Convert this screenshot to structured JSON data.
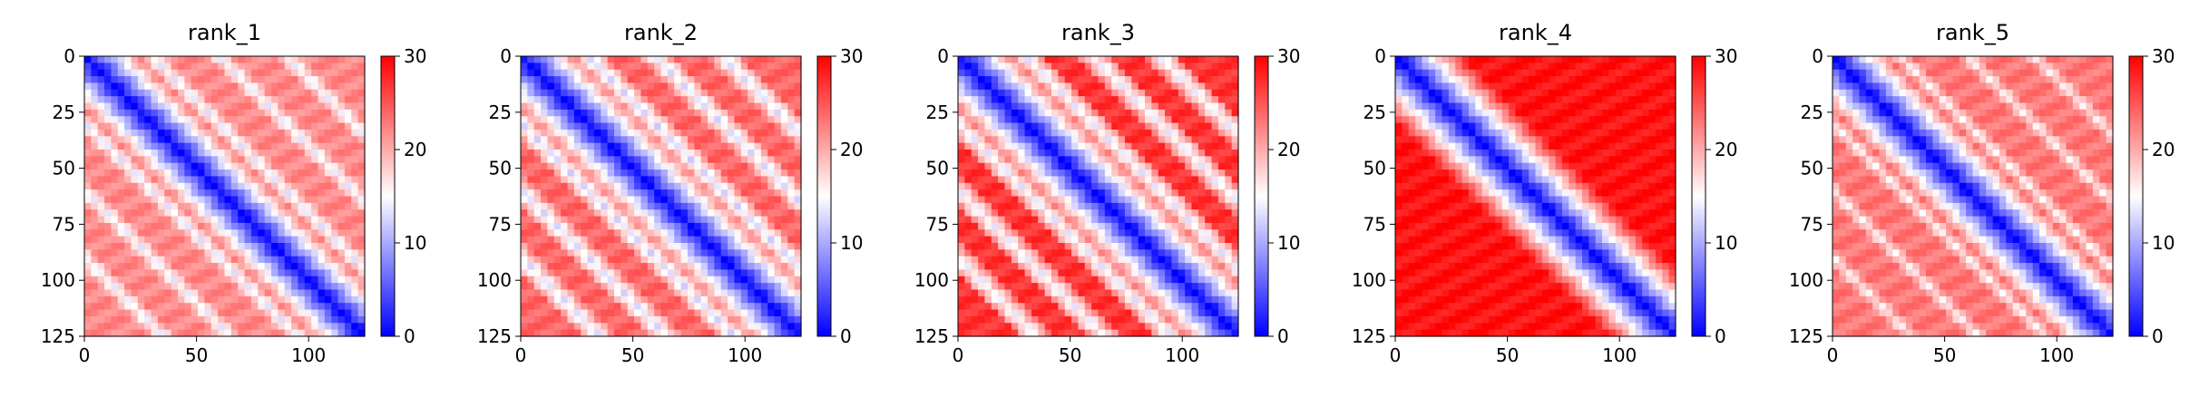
{
  "chart_data": [
    {
      "type": "heatmap",
      "title": "rank_1",
      "x_ticks": [
        "0",
        "50",
        "100"
      ],
      "y_ticks": [
        "0",
        "25",
        "50",
        "75",
        "100",
        "125"
      ],
      "xlim": [
        0,
        125
      ],
      "ylim": [
        125,
        0
      ],
      "colorbar": {
        "ticks": [
          "0",
          "10",
          "20",
          "30"
        ],
        "range": [
          0,
          30
        ],
        "colormap": [
          "#0000ff",
          "#ffffff",
          "#ff0000"
        ]
      },
      "pattern": {
        "background": 22,
        "diagonal": 0,
        "band_offsets": [
          30,
          60,
          90
        ],
        "band_value": 14
      }
    },
    {
      "type": "heatmap",
      "title": "rank_2",
      "x_ticks": [
        "0",
        "50",
        "100"
      ],
      "y_ticks": [
        "0",
        "25",
        "50",
        "75",
        "100",
        "125"
      ],
      "xlim": [
        0,
        125
      ],
      "ylim": [
        125,
        0
      ],
      "colorbar": {
        "ticks": [
          "0",
          "10",
          "20",
          "30"
        ],
        "range": [
          0,
          30
        ],
        "colormap": [
          "#0000ff",
          "#ffffff",
          "#ff0000"
        ]
      },
      "pattern": {
        "background": 24,
        "diagonal": 0,
        "band_offsets": [
          30,
          60,
          90
        ],
        "band_value": 13
      }
    },
    {
      "type": "heatmap",
      "title": "rank_3",
      "x_ticks": [
        "0",
        "50",
        "100"
      ],
      "y_ticks": [
        "0",
        "25",
        "50",
        "75",
        "100",
        "125"
      ],
      "xlim": [
        0,
        125
      ],
      "ylim": [
        125,
        0
      ],
      "colorbar": {
        "ticks": [
          "0",
          "10",
          "20",
          "30"
        ],
        "range": [
          0,
          30
        ],
        "colormap": [
          "#0000ff",
          "#ffffff",
          "#ff0000"
        ]
      },
      "pattern": {
        "background": 27,
        "diagonal": 0,
        "band_offsets": [
          30,
          60,
          90
        ],
        "band_value": 14
      }
    },
    {
      "type": "heatmap",
      "title": "rank_4",
      "x_ticks": [
        "0",
        "50",
        "100"
      ],
      "y_ticks": [
        "0",
        "25",
        "50",
        "75",
        "100",
        "125"
      ],
      "xlim": [
        0,
        125
      ],
      "ylim": [
        125,
        0
      ],
      "colorbar": {
        "ticks": [
          "0",
          "10",
          "20",
          "30"
        ],
        "range": [
          0,
          30
        ],
        "colormap": [
          "#0000ff",
          "#ffffff",
          "#ff0000"
        ]
      },
      "pattern": {
        "background": 29,
        "diagonal": 0,
        "band_offsets": [],
        "band_value": 22
      }
    },
    {
      "type": "heatmap",
      "title": "rank_5",
      "x_ticks": [
        "0",
        "50",
        "100"
      ],
      "y_ticks": [
        "0",
        "25",
        "50",
        "75",
        "100",
        "125"
      ],
      "xlim": [
        0,
        125
      ],
      "ylim": [
        125,
        0
      ],
      "colorbar": {
        "ticks": [
          "0",
          "10",
          "20",
          "30"
        ],
        "range": [
          0,
          30
        ],
        "colormap": [
          "#0000ff",
          "#ffffff",
          "#ff0000"
        ]
      },
      "pattern": {
        "background": 23,
        "diagonal": 0,
        "band_offsets": [
          30,
          60,
          90
        ],
        "band_value": 16
      }
    }
  ]
}
